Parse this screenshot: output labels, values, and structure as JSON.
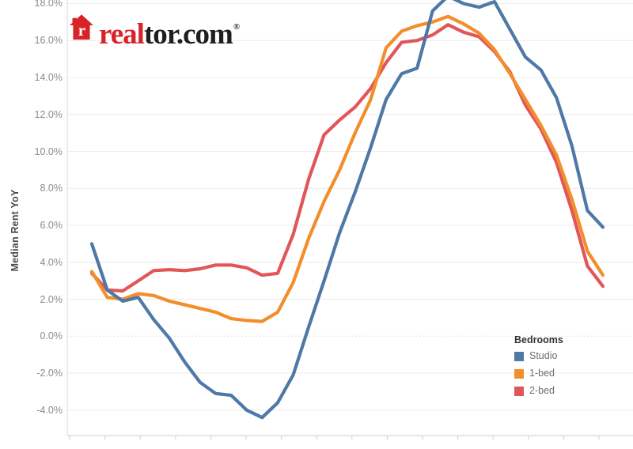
{
  "brand": {
    "icon": "realtor-house-icon",
    "wordmark_red": "real",
    "wordmark_dark": "tor.com",
    "registered_mark": "®",
    "brand_red": "#d92228",
    "brand_dark": "#211e1f"
  },
  "axes": {
    "y_label": "Median Rent YoY",
    "y_ticks": [
      {
        "value": 18,
        "label": "18.0%"
      },
      {
        "value": 16,
        "label": "16.0%"
      },
      {
        "value": 14,
        "label": "14.0%"
      },
      {
        "value": 12,
        "label": "12.0%"
      },
      {
        "value": 10,
        "label": "10.0%"
      },
      {
        "value": 8,
        "label": "8.0%"
      },
      {
        "value": 6,
        "label": "6.0%"
      },
      {
        "value": 4,
        "label": "4.0%"
      },
      {
        "value": 2,
        "label": "2.0%"
      },
      {
        "value": 0,
        "label": "0.0%"
      },
      {
        "value": -2,
        "label": "-2.0%"
      },
      {
        "value": -4,
        "label": "-4.0%"
      }
    ],
    "x_tick_labels_visible": false
  },
  "legend": {
    "title": "Bedrooms"
  },
  "chart_data": {
    "type": "line",
    "ylabel": "Median Rent YoY",
    "y_tick_format": "percent",
    "ylim": [
      -5.4,
      18.2
    ],
    "grid": true,
    "zero_line_style": "dotted",
    "legend_position": "right-bottom",
    "legend_title": "Bedrooms",
    "x_unit": "months (x-axis tick labels cropped out of frame)",
    "x": [
      0,
      1,
      2,
      3,
      4,
      5,
      6,
      7,
      8,
      9,
      10,
      11,
      12,
      13,
      14,
      15,
      16,
      17,
      18,
      19,
      20,
      21,
      22,
      23,
      24,
      25,
      26,
      27,
      28,
      29,
      30,
      31,
      32,
      33
    ],
    "series": [
      {
        "name": "Studio",
        "color": "#4e79a7",
        "values": [
          5.0,
          2.5,
          1.9,
          2.1,
          0.9,
          -0.1,
          -1.4,
          -2.5,
          -3.1,
          -3.2,
          -4.0,
          -4.4,
          -3.6,
          -2.1,
          0.5,
          3.0,
          5.6,
          7.8,
          10.2,
          12.8,
          14.2,
          14.5,
          17.6,
          18.4,
          18.0,
          17.8,
          18.1,
          16.6,
          15.1,
          14.4,
          12.9,
          10.3,
          6.8,
          5.9
        ]
      },
      {
        "name": "1-bed",
        "color": "#f28e2b",
        "values": [
          3.5,
          2.1,
          2.0,
          2.3,
          2.2,
          1.9,
          1.7,
          1.5,
          1.3,
          0.95,
          0.85,
          0.8,
          1.3,
          2.9,
          5.3,
          7.3,
          9.0,
          11.0,
          12.8,
          15.6,
          16.5,
          16.8,
          17.0,
          17.3,
          16.9,
          16.4,
          15.5,
          14.2,
          12.8,
          11.4,
          9.8,
          7.4,
          4.6,
          3.3
        ]
      },
      {
        "name": "2-bed",
        "color": "#e15759",
        "values": [
          3.4,
          2.5,
          2.45,
          3.0,
          3.55,
          3.6,
          3.55,
          3.65,
          3.85,
          3.85,
          3.7,
          3.3,
          3.4,
          5.5,
          8.5,
          10.9,
          11.7,
          12.4,
          13.4,
          14.8,
          15.9,
          16.0,
          16.3,
          16.85,
          16.45,
          16.2,
          15.4,
          14.3,
          12.5,
          11.2,
          9.4,
          6.8,
          3.8,
          2.7
        ]
      }
    ]
  }
}
